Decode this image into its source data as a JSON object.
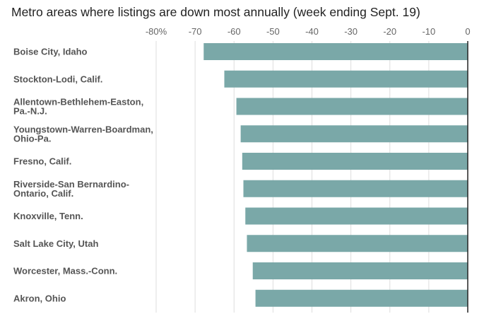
{
  "chart_data": {
    "type": "bar",
    "orientation": "horizontal",
    "title": "Metro areas where listings are down most annually (week ending Sept. 19)",
    "xlabel": "",
    "ylabel": "",
    "unit": "%",
    "xlim": [
      -80,
      0
    ],
    "x_ticks": [
      -80,
      -70,
      -60,
      -50,
      -40,
      -30,
      -20,
      -10,
      0
    ],
    "x_tick_labels": [
      "-80%",
      "-70",
      "-60",
      "-50",
      "-40",
      "-30",
      "-20",
      "-10",
      "0"
    ],
    "x_axis_position": "top",
    "grid": true,
    "legend": "none",
    "bar_color": "#7aa8a8",
    "categories": [
      [
        "Boise City, Idaho"
      ],
      [
        "Stockton-Lodi, Calif."
      ],
      [
        "Allentown-Bethlehem-Easton,",
        "Pa.-N.J."
      ],
      [
        "Youngstown-Warren-Boardman,",
        "Ohio-Pa."
      ],
      [
        "Fresno, Calif."
      ],
      [
        "Riverside-San Bernardino-",
        "Ontario, Calif."
      ],
      [
        "Knoxville, Tenn."
      ],
      [
        "Salt Lake City, Utah"
      ],
      [
        "Worcester, Mass.-Conn."
      ],
      [
        "Akron, Ohio"
      ]
    ],
    "values": [
      -67.8,
      -62.5,
      -59.4,
      -58.3,
      -57.9,
      -57.6,
      -57.1,
      -56.7,
      -55.2,
      -54.5
    ]
  }
}
